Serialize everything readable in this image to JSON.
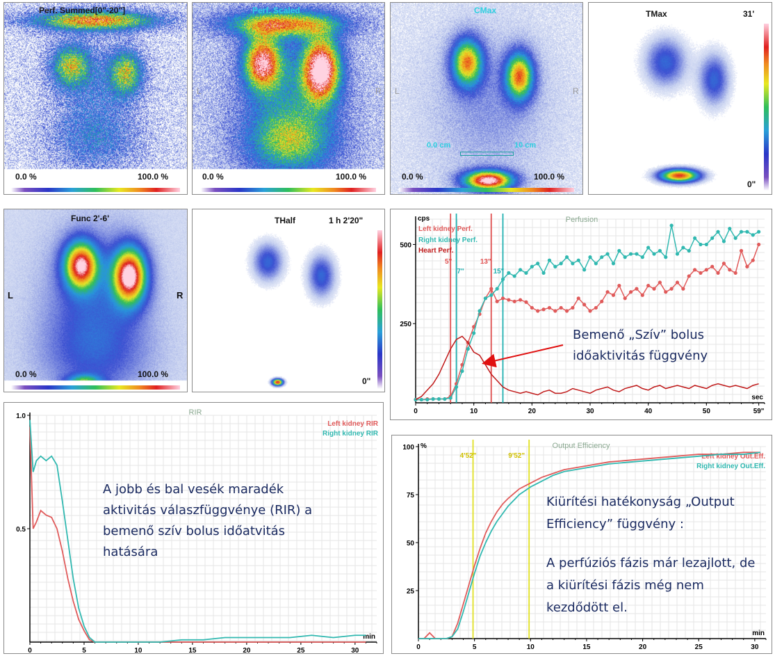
{
  "panels": {
    "perf_summed": {
      "title": "Perf. Summed[0\"-20\"]",
      "min": "0.0 %",
      "max": "100.0 %"
    },
    "perf_scaled": {
      "title": "Perf. Scaled",
      "min": "0.0 %",
      "max": "100.0 %",
      "left": "L",
      "right": "R"
    },
    "cmax": {
      "title": "CMax",
      "min": "0.0 %",
      "max": "100.0 %",
      "left": "L",
      "right": "R",
      "scale_left": "0.0 cm",
      "scale_right": "10 cm"
    },
    "tmax": {
      "title": "TMax",
      "top_right": "31'",
      "bottom_right": "0\""
    },
    "func": {
      "title": "Func 2'-6'",
      "min": "0.0 %",
      "max": "100.0 %",
      "left": "L",
      "right": "R"
    },
    "thalf": {
      "title": "THalf",
      "top_right": "1 h 2'20\"",
      "bottom_right": "0\""
    }
  },
  "chart_data": [
    {
      "type": "line",
      "title": "Perfusion",
      "ylabel": "cps",
      "xlabel": "sec",
      "ylim": [
        0,
        580
      ],
      "xlim": [
        0,
        60
      ],
      "yticks": [
        "500",
        "250"
      ],
      "xticks": [
        "0",
        "10",
        "20",
        "30",
        "40",
        "50",
        "59\""
      ],
      "markers": [
        {
          "label": "5\"",
          "color": "#e05050"
        },
        {
          "label": "7\"",
          "color": "#20b0b0"
        },
        {
          "label": "13\"",
          "color": "#e05050"
        },
        {
          "label": "15\"",
          "color": "#20b0b0"
        }
      ],
      "series": [
        {
          "name": "Left kidney Perf.",
          "color": "#e05a5a",
          "x": [
            0,
            1,
            2,
            3,
            4,
            5,
            6,
            7,
            8,
            9,
            10,
            11,
            12,
            13,
            14,
            15,
            16,
            17,
            18,
            19,
            20,
            21,
            22,
            23,
            24,
            25,
            26,
            27,
            28,
            29,
            30,
            31,
            32,
            33,
            34,
            35,
            36,
            37,
            38,
            39,
            40,
            41,
            42,
            43,
            44,
            45,
            46,
            47,
            48,
            49,
            50,
            51,
            52,
            53,
            54,
            55,
            56,
            57,
            58,
            59
          ],
          "values": [
            10,
            10,
            12,
            12,
            12,
            12,
            20,
            60,
            120,
            190,
            240,
            280,
            330,
            360,
            320,
            330,
            325,
            320,
            325,
            318,
            300,
            290,
            295,
            300,
            290,
            300,
            290,
            300,
            330,
            310,
            290,
            300,
            320,
            350,
            340,
            370,
            330,
            350,
            360,
            340,
            370,
            360,
            380,
            350,
            360,
            380,
            360,
            400,
            420,
            410,
            420,
            430,
            410,
            440,
            420,
            410,
            480,
            430,
            450,
            500
          ]
        },
        {
          "name": "Right kidney Perf.",
          "color": "#30b8b0",
          "x": [
            0,
            1,
            2,
            3,
            4,
            5,
            6,
            7,
            8,
            9,
            10,
            11,
            12,
            13,
            14,
            15,
            16,
            17,
            18,
            19,
            20,
            21,
            22,
            23,
            24,
            25,
            26,
            27,
            28,
            29,
            30,
            31,
            32,
            33,
            34,
            35,
            36,
            37,
            38,
            39,
            40,
            41,
            42,
            43,
            44,
            45,
            46,
            47,
            48,
            49,
            50,
            51,
            52,
            53,
            54,
            55,
            56,
            57,
            58,
            59
          ],
          "values": [
            10,
            10,
            10,
            12,
            12,
            12,
            15,
            50,
            100,
            170,
            220,
            290,
            330,
            340,
            360,
            390,
            410,
            400,
            420,
            410,
            430,
            440,
            410,
            450,
            430,
            440,
            460,
            440,
            450,
            420,
            460,
            440,
            460,
            470,
            440,
            480,
            460,
            470,
            470,
            460,
            490,
            470,
            480,
            460,
            560,
            470,
            490,
            480,
            520,
            500,
            500,
            520,
            540,
            510,
            550,
            520,
            540,
            540,
            530,
            540
          ]
        },
        {
          "name": "Heart Perf.",
          "color": "#c01818",
          "x": [
            0,
            1,
            2,
            3,
            4,
            5,
            6,
            7,
            8,
            9,
            10,
            11,
            12,
            13,
            14,
            15,
            16,
            17,
            18,
            19,
            20,
            21,
            22,
            23,
            24,
            25,
            26,
            27,
            28,
            29,
            30,
            31,
            32,
            33,
            34,
            35,
            36,
            37,
            38,
            39,
            40,
            41,
            42,
            43,
            44,
            45,
            46,
            47,
            48,
            49,
            50,
            51,
            52,
            53,
            54,
            55,
            56,
            57,
            58,
            59
          ],
          "values": [
            10,
            20,
            40,
            60,
            90,
            130,
            170,
            200,
            210,
            190,
            160,
            150,
            120,
            90,
            70,
            50,
            40,
            35,
            30,
            35,
            30,
            25,
            35,
            40,
            30,
            30,
            35,
            45,
            40,
            35,
            30,
            40,
            45,
            50,
            40,
            35,
            45,
            50,
            55,
            45,
            40,
            50,
            55,
            45,
            50,
            55,
            50,
            45,
            55,
            50,
            45,
            55,
            60,
            55,
            50,
            55,
            50,
            45,
            55,
            60
          ]
        }
      ]
    },
    {
      "type": "line",
      "title": "RIR",
      "xlabel": "min",
      "ylim": [
        0,
        1.0
      ],
      "xlim": [
        0,
        32
      ],
      "yticks": [
        "1.0",
        "0.5"
      ],
      "xticks": [
        "0",
        "5",
        "10",
        "15",
        "20",
        "25",
        "30"
      ],
      "series": [
        {
          "name": "Left kidney RIR",
          "color": "#e05a5a",
          "x": [
            0,
            0.3,
            0.6,
            1,
            1.5,
            2,
            2.5,
            3,
            3.5,
            4,
            4.5,
            5,
            5.5,
            6,
            7,
            8,
            9,
            10,
            12,
            14,
            16,
            18,
            20,
            22,
            24,
            26,
            28,
            30,
            31
          ],
          "values": [
            0.95,
            0.5,
            0.53,
            0.58,
            0.56,
            0.55,
            0.5,
            0.4,
            0.28,
            0.18,
            0.1,
            0.05,
            0.01,
            0,
            0,
            0,
            0,
            0,
            0,
            0,
            0,
            0,
            0,
            0,
            0,
            0,
            0,
            0,
            0
          ]
        },
        {
          "name": "Right kidney RIR",
          "color": "#30b8b0",
          "x": [
            0,
            0.3,
            0.6,
            1,
            1.5,
            2,
            2.5,
            3,
            3.5,
            4,
            4.5,
            5,
            5.5,
            6,
            7,
            8,
            9,
            10,
            12,
            14,
            16,
            18,
            20,
            22,
            24,
            26,
            28,
            30,
            31
          ],
          "values": [
            0.98,
            0.75,
            0.8,
            0.82,
            0.8,
            0.82,
            0.78,
            0.62,
            0.45,
            0.28,
            0.15,
            0.07,
            0.02,
            0,
            0,
            0,
            0,
            0,
            0,
            0.01,
            0.01,
            0.02,
            0.02,
            0.02,
            0.02,
            0.03,
            0.02,
            0.03,
            0.03
          ]
        }
      ]
    },
    {
      "type": "line",
      "title": "Output Efficiency",
      "ylabel": "%",
      "xlabel": "min",
      "ylim": [
        0,
        100
      ],
      "xlim": [
        0,
        31
      ],
      "yticks": [
        "100",
        "75",
        "50",
        "25"
      ],
      "xticks": [
        "0",
        "5",
        "10",
        "15",
        "20",
        "25",
        "30"
      ],
      "markers": [
        {
          "label": "4'52\"",
          "color": "#e0e020"
        },
        {
          "label": "9'52\"",
          "color": "#e0e020"
        }
      ],
      "series": [
        {
          "name": "Left kidney Out.Eff.",
          "color": "#e05a5a",
          "x": [
            0,
            0.5,
            1,
            1.5,
            2,
            2.5,
            3,
            3.5,
            4,
            4.5,
            5,
            5.5,
            6,
            6.5,
            7,
            7.5,
            8,
            9,
            10,
            11,
            12,
            13,
            14,
            15,
            17,
            19,
            21,
            23,
            25,
            27,
            29,
            30.5
          ],
          "values": [
            0,
            0,
            3,
            0,
            0,
            0,
            1,
            8,
            18,
            28,
            38,
            47,
            55,
            61,
            66,
            70,
            73,
            78,
            81,
            84,
            86,
            88,
            89,
            90,
            92,
            93,
            94,
            95,
            96,
            96,
            97,
            97
          ]
        },
        {
          "name": "Right kidney Out.Eff.",
          "color": "#30b8b0",
          "x": [
            0,
            0.5,
            1,
            1.5,
            2,
            2.5,
            3,
            3.5,
            4,
            4.5,
            5,
            5.5,
            6,
            6.5,
            7,
            7.5,
            8,
            9,
            10,
            11,
            12,
            13,
            14,
            15,
            17,
            19,
            21,
            23,
            25,
            27,
            29,
            30.5
          ],
          "values": [
            0,
            0,
            0,
            0,
            0,
            0,
            1,
            5,
            14,
            24,
            34,
            43,
            50,
            56,
            61,
            65,
            69,
            75,
            79,
            82,
            85,
            87,
            88,
            89,
            91,
            92,
            93,
            94,
            95,
            96,
            96,
            97
          ]
        }
      ]
    }
  ],
  "annotations": {
    "heart_bolus": "Bemenő „Szív” bolus időaktivitás függvény",
    "rir_note": "A jobb és bal vesék maradék aktivitás válaszfüggvénye (RIR) a bemenő szív bolus időatvitás hatására",
    "oe_note1": "Kiürítési hatékonyság „Output Efficiency” függvény :",
    "oe_note2": "A perfúziós fázis már lezajlott, de a kiürítési fázis még nem kezdődött el."
  }
}
